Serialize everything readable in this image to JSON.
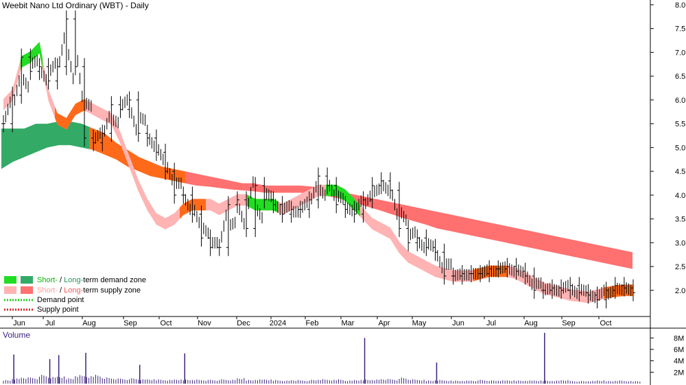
{
  "chart_data": {
    "type": "candlestick",
    "title": "Weebit Nano Ltd Ordinary (WBT) - Daily",
    "price_axis": {
      "ticks": [
        "8.0",
        "7.5",
        "7.0",
        "6.5",
        "6.0",
        "5.5",
        "5.0",
        "4.5",
        "4.0",
        "3.5",
        "3.0",
        "2.5",
        "2.0"
      ],
      "ylim": [
        1.45,
        8.1
      ]
    },
    "volume_axis": {
      "label": "Volume",
      "ticks": [
        "8M",
        "6M",
        "4M",
        "2M"
      ],
      "ylim": [
        0,
        9
      ]
    },
    "x_ticks": [
      "Jun",
      "Jul",
      "Aug",
      "Sep",
      "Oct",
      "Nov",
      "Dec",
      "2024",
      "Feb",
      "Mar",
      "Apr",
      "May",
      "Jun",
      "Jul",
      "Aug",
      "Sep",
      "Oct"
    ],
    "closes": [
      5.5,
      6.1,
      6.9,
      6.6,
      6.7,
      6.4,
      6.7,
      7.7,
      6.7,
      5.2,
      5.1,
      5.3,
      5.9,
      5.8,
      6.0,
      5.3,
      5.2,
      4.9,
      4.5,
      4.0,
      4.0,
      3.6,
      3.1,
      2.9,
      2.9,
      3.8,
      3.9,
      3.3,
      4.2,
      3.9,
      3.8,
      3.6,
      3.7,
      3.7,
      3.9,
      4.4,
      4.2,
      3.8,
      3.7,
      3.6,
      3.9,
      4.2,
      4.3,
      4.1,
      3.3,
      3.0,
      3.1,
      2.9,
      2.8,
      2.3,
      2.3,
      2.35,
      2.35,
      2.35,
      2.45,
      2.45,
      2.5,
      2.4,
      2.3,
      2.0,
      2.0,
      2.05,
      2.0,
      2.1,
      1.95,
      1.9,
      1.8,
      2.0,
      2.1,
      2.05,
      1.95
    ],
    "volumes": [
      0.7,
      1.0,
      1.2,
      1.1,
      1.6,
      1.2,
      1.3,
      1.0,
      1.6,
      1.4,
      1.7,
      1.2,
      1.0,
      0.9,
      1.0,
      0.8,
      0.8,
      0.8,
      0.7,
      0.8,
      0.8,
      0.8,
      0.7,
      0.7,
      0.8,
      0.7,
      1.0,
      0.7,
      0.8,
      0.8,
      0.7,
      0.6,
      0.7,
      0.6,
      0.7,
      0.8,
      0.7,
      0.8,
      0.6,
      0.7,
      0.8,
      0.8,
      0.9,
      0.8,
      1.1,
      0.8,
      0.7,
      0.6,
      0.7,
      0.6,
      0.6,
      0.6,
      0.6,
      0.7,
      0.6,
      0.6,
      0.6,
      0.6,
      0.6,
      0.6,
      0.6,
      0.6,
      0.7,
      0.5,
      0.5,
      0.5,
      0.6,
      0.5,
      0.6,
      0.5,
      0.5
    ],
    "volume_spikes": [
      {
        "index": 1,
        "value": 5.1
      },
      {
        "index": 5,
        "value": 4.3
      },
      {
        "index": 6,
        "value": 5.0
      },
      {
        "index": 9,
        "value": 5.4
      },
      {
        "index": 15,
        "value": 3.3
      },
      {
        "index": 20,
        "value": 5.3
      },
      {
        "index": 40,
        "value": 8.0
      },
      {
        "index": 48,
        "value": 3.7
      },
      {
        "index": 60,
        "value": 8.9
      }
    ],
    "short_term_zone": [
      5.9,
      6.1,
      6.8,
      6.9,
      7.1,
      6.1,
      5.6,
      5.5,
      5.8,
      5.9,
      5.8,
      5.7,
      5.6,
      5.2,
      4.7,
      4.2,
      3.8,
      3.5,
      3.4,
      3.5,
      3.7,
      3.8,
      3.8,
      3.8,
      3.7,
      3.8,
      3.9,
      3.9,
      3.8,
      3.8,
      3.8,
      3.7,
      3.8,
      3.9,
      4.0,
      4.1,
      4.1,
      4.1,
      4.0,
      3.8,
      3.6,
      3.4,
      3.3,
      3.2,
      2.9,
      2.7,
      2.6,
      2.5,
      2.4,
      2.35,
      2.3,
      2.3,
      2.3,
      2.35,
      2.4,
      2.4,
      2.4,
      2.35,
      2.25,
      2.15,
      2.05,
      2.0,
      1.95,
      1.9,
      1.88,
      1.85,
      1.9,
      1.95,
      1.98,
      2.0,
      2.0
    ],
    "long_term_zone_upper": [
      5.4,
      5.4,
      5.4,
      5.5,
      5.5,
      5.55,
      5.55,
      5.5,
      5.4,
      5.3,
      5.1,
      4.95,
      4.8,
      4.7,
      4.6,
      4.55,
      4.5,
      4.45,
      4.4,
      4.35,
      4.3,
      4.25,
      4.25,
      4.2,
      4.2,
      4.2,
      4.2,
      4.18,
      4.15,
      4.1,
      4.05,
      4.0,
      3.95,
      3.9,
      3.85,
      3.8,
      3.75,
      3.7,
      3.65,
      3.6,
      3.55,
      3.5,
      3.45,
      3.4,
      3.35,
      3.3,
      3.25,
      3.2,
      3.15,
      3.1,
      3.05,
      3.0,
      2.95,
      2.9,
      2.85,
      2.8
    ],
    "long_term_zone_lower": [
      4.55,
      4.7,
      4.8,
      4.9,
      5.0,
      5.05,
      5.05,
      5.0,
      4.95,
      4.85,
      4.75,
      4.6,
      4.5,
      4.4,
      4.35,
      4.3,
      4.25,
      4.2,
      4.18,
      4.15,
      4.12,
      4.1,
      4.08,
      4.05,
      4.05,
      4.05,
      4.05,
      4.03,
      4.0,
      3.95,
      3.9,
      3.82,
      3.75,
      3.68,
      3.6,
      3.52,
      3.45,
      3.38,
      3.3,
      3.25,
      3.2,
      3.15,
      3.1,
      3.05,
      3.0,
      2.95,
      2.9,
      2.85,
      2.8,
      2.75,
      2.7,
      2.65,
      2.6,
      2.55,
      2.5,
      2.45
    ],
    "legend": [
      {
        "label_short": "Short-",
        "sep": " / ",
        "label_long": "Long-",
        "rest": "term demand zone",
        "color_short": "#22dd22",
        "color_long": "#33aa66"
      },
      {
        "label_short": "Short-",
        "sep": " / ",
        "label_long": "Long-",
        "rest": "term supply zone",
        "color_short": "#ffb3b3",
        "color_long": "#ff7070"
      },
      {
        "label": "Demand point",
        "color": "#22cc22"
      },
      {
        "label": "Supply point",
        "color": "#dd2222"
      }
    ],
    "legend_position": "bottom-left",
    "colors": {
      "short_demand": "#22dd22",
      "long_demand": "#33aa66",
      "short_supply": "#ffb3b3",
      "long_supply": "#ff7070",
      "orange": "#ff6a1a",
      "volume": "#3a1f7a"
    }
  }
}
